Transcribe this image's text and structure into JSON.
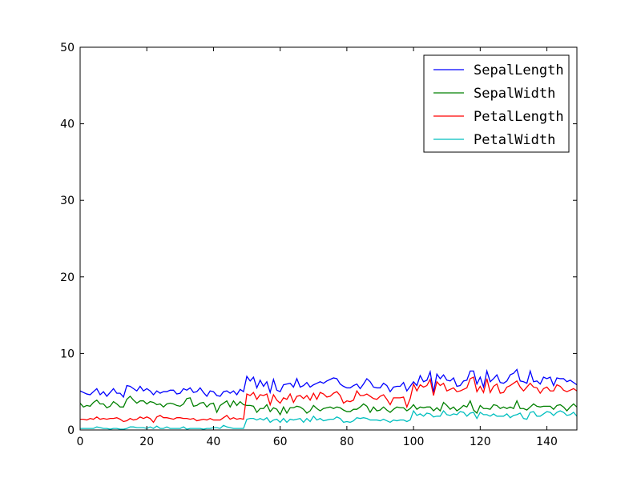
{
  "chart_data": {
    "type": "line",
    "title": "",
    "xlabel": "",
    "ylabel": "",
    "xlim": [
      0,
      149
    ],
    "ylim": [
      0,
      50
    ],
    "xticks": [
      0,
      20,
      40,
      60,
      80,
      100,
      120,
      140
    ],
    "yticks": [
      0,
      10,
      20,
      30,
      40,
      50
    ],
    "grid": false,
    "legend_position": "top-right",
    "series": [
      {
        "name": "SepalLength",
        "color": "#0000ff",
        "values": [
          5.1,
          4.9,
          4.7,
          4.6,
          5.0,
          5.4,
          4.6,
          5.0,
          4.4,
          4.9,
          5.4,
          4.8,
          4.8,
          4.3,
          5.8,
          5.7,
          5.4,
          5.1,
          5.7,
          5.1,
          5.4,
          5.1,
          4.6,
          5.1,
          4.8,
          5.0,
          5.0,
          5.2,
          5.2,
          4.7,
          4.8,
          5.4,
          5.2,
          5.5,
          4.9,
          5.0,
          5.5,
          4.9,
          4.4,
          5.1,
          5.0,
          4.5,
          4.4,
          5.0,
          5.1,
          4.8,
          5.1,
          4.6,
          5.3,
          5.0,
          7.0,
          6.4,
          6.9,
          5.5,
          6.5,
          5.7,
          6.3,
          4.9,
          6.6,
          5.2,
          5.0,
          5.9,
          6.0,
          6.1,
          5.6,
          6.7,
          5.6,
          5.8,
          6.2,
          5.6,
          5.9,
          6.1,
          6.3,
          6.1,
          6.4,
          6.6,
          6.8,
          6.7,
          6.0,
          5.7,
          5.5,
          5.5,
          5.8,
          6.0,
          5.4,
          6.0,
          6.7,
          6.3,
          5.6,
          5.5,
          5.5,
          6.1,
          5.8,
          5.0,
          5.6,
          5.7,
          5.7,
          6.2,
          5.1,
          5.7,
          6.3,
          5.8,
          7.1,
          6.3,
          6.5,
          7.6,
          4.9,
          7.3,
          6.7,
          7.2,
          6.5,
          6.4,
          6.8,
          5.7,
          5.8,
          6.4,
          6.5,
          7.7,
          7.7,
          6.0,
          6.9,
          5.6,
          7.7,
          6.3,
          6.7,
          7.2,
          6.2,
          6.1,
          6.4,
          7.2,
          7.4,
          7.9,
          6.4,
          6.3,
          6.1,
          7.7,
          6.3,
          6.4,
          6.0,
          6.9,
          6.7,
          6.9,
          5.8,
          6.8,
          6.7,
          6.7,
          6.3,
          6.5,
          6.2,
          5.9
        ]
      },
      {
        "name": "SepalWidth",
        "color": "#008000",
        "values": [
          3.5,
          3.0,
          3.2,
          3.1,
          3.6,
          3.9,
          3.4,
          3.4,
          2.9,
          3.1,
          3.7,
          3.4,
          3.0,
          3.0,
          4.0,
          4.4,
          3.9,
          3.5,
          3.8,
          3.8,
          3.4,
          3.7,
          3.6,
          3.3,
          3.4,
          3.0,
          3.4,
          3.5,
          3.4,
          3.2,
          3.1,
          3.4,
          4.1,
          4.2,
          3.1,
          3.2,
          3.5,
          3.6,
          3.0,
          3.4,
          3.5,
          2.3,
          3.2,
          3.5,
          3.8,
          3.0,
          3.8,
          3.2,
          3.7,
          3.3,
          3.2,
          3.2,
          3.1,
          2.3,
          2.8,
          2.8,
          3.3,
          2.4,
          2.9,
          2.7,
          2.0,
          3.0,
          2.2,
          2.9,
          2.9,
          3.1,
          3.0,
          2.7,
          2.2,
          2.5,
          3.2,
          2.8,
          2.5,
          2.8,
          2.9,
          3.0,
          2.8,
          3.0,
          2.9,
          2.6,
          2.4,
          2.4,
          2.7,
          2.7,
          3.0,
          3.4,
          3.1,
          2.3,
          3.0,
          2.5,
          2.6,
          3.0,
          2.6,
          2.3,
          2.7,
          3.0,
          2.9,
          2.9,
          2.5,
          2.8,
          3.3,
          2.7,
          3.0,
          2.9,
          3.0,
          3.0,
          2.5,
          2.9,
          2.5,
          3.6,
          3.2,
          2.7,
          3.0,
          2.5,
          2.8,
          3.2,
          3.0,
          3.8,
          2.6,
          2.2,
          3.2,
          2.8,
          2.8,
          2.7,
          3.3,
          3.2,
          2.8,
          3.0,
          2.8,
          3.0,
          2.8,
          3.8,
          2.8,
          2.8,
          2.6,
          3.0,
          3.4,
          3.1,
          3.0,
          3.1,
          3.1,
          3.1,
          2.7,
          3.2,
          3.3,
          3.0,
          2.5,
          3.0,
          3.4,
          3.0
        ]
      },
      {
        "name": "PetalLength",
        "color": "#ff0000",
        "values": [
          1.4,
          1.4,
          1.3,
          1.5,
          1.4,
          1.7,
          1.4,
          1.5,
          1.4,
          1.5,
          1.5,
          1.6,
          1.4,
          1.1,
          1.2,
          1.5,
          1.3,
          1.4,
          1.7,
          1.5,
          1.7,
          1.5,
          1.0,
          1.7,
          1.9,
          1.6,
          1.6,
          1.5,
          1.4,
          1.6,
          1.6,
          1.5,
          1.5,
          1.4,
          1.5,
          1.2,
          1.3,
          1.4,
          1.3,
          1.5,
          1.3,
          1.3,
          1.3,
          1.6,
          1.9,
          1.4,
          1.6,
          1.4,
          1.5,
          1.4,
          4.7,
          4.5,
          4.9,
          4.0,
          4.6,
          4.5,
          4.7,
          3.3,
          4.6,
          3.9,
          3.5,
          4.2,
          4.0,
          4.7,
          3.6,
          4.4,
          4.5,
          4.1,
          4.5,
          3.9,
          4.8,
          4.0,
          4.9,
          4.7,
          4.3,
          4.4,
          4.8,
          5.0,
          4.5,
          3.5,
          3.8,
          3.7,
          3.9,
          5.1,
          4.5,
          4.5,
          4.7,
          4.4,
          4.1,
          4.0,
          4.4,
          4.6,
          4.0,
          3.3,
          4.2,
          4.2,
          4.2,
          4.3,
          3.0,
          4.1,
          6.0,
          5.1,
          5.9,
          5.6,
          5.8,
          6.6,
          4.5,
          6.3,
          5.8,
          6.1,
          5.1,
          5.3,
          5.5,
          5.0,
          5.1,
          5.3,
          5.5,
          6.7,
          6.9,
          5.0,
          5.7,
          4.9,
          6.7,
          4.9,
          5.7,
          6.0,
          4.8,
          4.9,
          5.6,
          5.8,
          6.1,
          6.4,
          5.6,
          5.1,
          5.6,
          6.1,
          5.6,
          5.5,
          4.8,
          5.4,
          5.6,
          5.1,
          5.1,
          5.9,
          5.7,
          5.2,
          5.0,
          5.2,
          5.4,
          5.1
        ]
      },
      {
        "name": "PetalWidth",
        "color": "#00bfbf",
        "values": [
          0.2,
          0.2,
          0.2,
          0.2,
          0.2,
          0.4,
          0.3,
          0.2,
          0.2,
          0.1,
          0.2,
          0.2,
          0.1,
          0.1,
          0.2,
          0.4,
          0.4,
          0.3,
          0.3,
          0.3,
          0.2,
          0.4,
          0.2,
          0.5,
          0.2,
          0.2,
          0.4,
          0.2,
          0.2,
          0.2,
          0.2,
          0.4,
          0.1,
          0.2,
          0.2,
          0.2,
          0.2,
          0.1,
          0.2,
          0.2,
          0.3,
          0.3,
          0.2,
          0.6,
          0.4,
          0.3,
          0.2,
          0.2,
          0.2,
          0.2,
          1.4,
          1.5,
          1.5,
          1.3,
          1.5,
          1.3,
          1.6,
          1.0,
          1.3,
          1.4,
          1.0,
          1.5,
          1.0,
          1.4,
          1.3,
          1.4,
          1.5,
          1.0,
          1.5,
          1.1,
          1.8,
          1.3,
          1.5,
          1.2,
          1.3,
          1.4,
          1.4,
          1.7,
          1.5,
          1.0,
          1.1,
          1.0,
          1.2,
          1.6,
          1.5,
          1.6,
          1.5,
          1.3,
          1.3,
          1.3,
          1.2,
          1.4,
          1.2,
          1.0,
          1.3,
          1.2,
          1.3,
          1.3,
          1.1,
          1.3,
          2.5,
          1.9,
          2.1,
          1.8,
          2.2,
          2.1,
          1.7,
          1.8,
          1.8,
          2.5,
          2.0,
          1.9,
          2.1,
          2.0,
          2.4,
          2.3,
          1.8,
          2.2,
          2.3,
          1.5,
          2.3,
          2.0,
          2.0,
          1.8,
          2.1,
          1.8,
          1.8,
          1.8,
          2.1,
          1.6,
          1.9,
          2.0,
          2.2,
          1.5,
          1.4,
          2.3,
          2.4,
          1.8,
          1.8,
          2.1,
          2.4,
          2.3,
          1.9,
          2.3,
          2.5,
          2.3,
          1.9,
          2.0,
          2.3,
          1.8
        ]
      }
    ]
  }
}
